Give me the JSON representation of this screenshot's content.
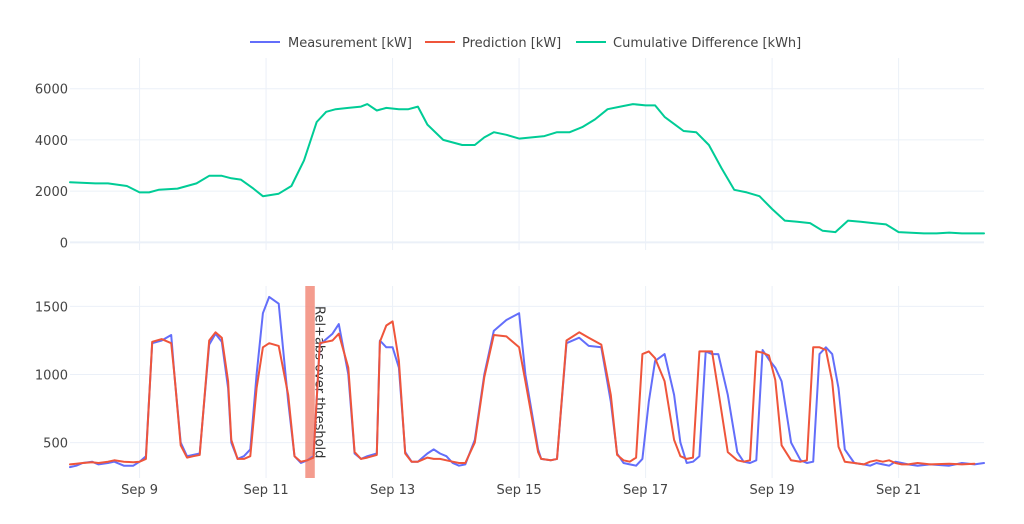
{
  "chart_data": {
    "type": "line",
    "colors": {
      "measurement": "#636efa",
      "prediction": "#ef553b",
      "cumulative": "#00cc96",
      "annotation_band": "#f28b7a"
    },
    "legend": {
      "placement": "top-center",
      "entries": [
        "Measurement [kW]",
        "Prediction [kW]",
        "Cumulative Difference [kWh]"
      ]
    },
    "x_ticks": [
      "Sep 9",
      "Sep 11",
      "Sep 13",
      "Sep 15",
      "Sep 17",
      "Sep 19",
      "Sep 21"
    ],
    "x_tick_days": [
      9,
      11,
      13,
      15,
      17,
      19,
      21
    ],
    "xlim_days": [
      7.9,
      22.35
    ],
    "grid": true,
    "top_panel": {
      "ylim": [
        -300,
        7200
      ],
      "y_ticks": [
        0,
        2000,
        4000,
        6000
      ],
      "series": [
        {
          "name": "Cumulative Difference [kWh]",
          "x_days": [
            7.9,
            8.3,
            8.5,
            8.8,
            9.0,
            9.15,
            9.3,
            9.6,
            9.9,
            10.1,
            10.3,
            10.45,
            10.6,
            10.8,
            10.95,
            11.2,
            11.4,
            11.6,
            11.8,
            11.95,
            12.1,
            12.3,
            12.5,
            12.6,
            12.75,
            12.9,
            13.1,
            13.25,
            13.4,
            13.55,
            13.8,
            14.1,
            14.3,
            14.45,
            14.6,
            14.8,
            15.0,
            15.2,
            15.4,
            15.6,
            15.8,
            16.0,
            16.2,
            16.4,
            16.6,
            16.8,
            17.0,
            17.15,
            17.3,
            17.6,
            17.8,
            18.0,
            18.2,
            18.4,
            18.6,
            18.8,
            19.0,
            19.2,
            19.4,
            19.6,
            19.8,
            20.0,
            20.2,
            20.4,
            20.6,
            20.8,
            21.0,
            21.4,
            21.6,
            21.8,
            22.0,
            22.35
          ],
          "values": [
            2350,
            2300,
            2300,
            2200,
            1950,
            1950,
            2050,
            2100,
            2300,
            2600,
            2600,
            2500,
            2450,
            2100,
            1800,
            1900,
            2200,
            3200,
            4700,
            5100,
            5200,
            5250,
            5300,
            5400,
            5150,
            5250,
            5200,
            5200,
            5300,
            4600,
            4000,
            3800,
            3800,
            4100,
            4300,
            4200,
            4050,
            4100,
            4150,
            4300,
            4300,
            4500,
            4800,
            5200,
            5300,
            5400,
            5350,
            5350,
            4900,
            4350,
            4300,
            3800,
            2900,
            2050,
            1950,
            1800,
            1300,
            850,
            800,
            750,
            450,
            400,
            850,
            800,
            750,
            700,
            400,
            350,
            350,
            380,
            350,
            350
          ]
        }
      ]
    },
    "bottom_panel": {
      "ylim": [
        240,
        1650
      ],
      "y_ticks": [
        500,
        1000,
        1500
      ],
      "annotation": {
        "text": "Rel+abs over threshold",
        "x_start_day": 11.62,
        "x_end_day": 11.77
      },
      "series": [
        {
          "name": "Measurement [kW]",
          "x_days": [
            7.9,
            8.0,
            8.1,
            8.25,
            8.35,
            8.5,
            8.6,
            8.75,
            8.9,
            9.0,
            9.1,
            9.2,
            9.35,
            9.5,
            9.55,
            9.65,
            9.75,
            9.85,
            9.95,
            10.1,
            10.2,
            10.3,
            10.4,
            10.45,
            10.55,
            10.65,
            10.75,
            10.85,
            10.95,
            11.05,
            11.2,
            11.35,
            11.45,
            11.55,
            11.65,
            11.75,
            11.85,
            11.95,
            12.05,
            12.15,
            12.3,
            12.4,
            12.5,
            12.6,
            12.75,
            12.8,
            12.9,
            13.0,
            13.1,
            13.2,
            13.3,
            13.4,
            13.45,
            13.55,
            13.65,
            13.75,
            13.85,
            13.95,
            14.05,
            14.15,
            14.3,
            14.45,
            14.6,
            14.8,
            15.0,
            15.1,
            15.3,
            15.35,
            15.5,
            15.6,
            15.75,
            15.95,
            16.1,
            16.3,
            16.45,
            16.55,
            16.65,
            16.75,
            16.85,
            16.95,
            17.05,
            17.15,
            17.3,
            17.45,
            17.55,
            17.65,
            17.75,
            17.85,
            17.95,
            18.05,
            18.15,
            18.3,
            18.45,
            18.55,
            18.65,
            18.75,
            18.85,
            18.95,
            19.05,
            19.15,
            19.3,
            19.45,
            19.55,
            19.65,
            19.75,
            19.85,
            19.95,
            20.05,
            20.15,
            20.3,
            20.45,
            20.55,
            20.65,
            20.75,
            20.85,
            20.95,
            21.05,
            21.15,
            21.3,
            21.5,
            21.8,
            22.0,
            22.2,
            22.35
          ],
          "values": [
            320,
            330,
            350,
            360,
            340,
            350,
            360,
            330,
            330,
            360,
            400,
            1230,
            1250,
            1290,
            1000,
            500,
            400,
            410,
            420,
            1220,
            1300,
            1240,
            900,
            500,
            380,
            400,
            450,
            1000,
            1450,
            1570,
            1520,
            800,
            400,
            350,
            370,
            400,
            1220,
            1260,
            1300,
            1370,
            1000,
            420,
            380,
            400,
            420,
            1250,
            1200,
            1200,
            1050,
            430,
            360,
            360,
            380,
            420,
            450,
            420,
            400,
            350,
            330,
            340,
            520,
            1000,
            1320,
            1400,
            1450,
            1000,
            450,
            380,
            370,
            380,
            1230,
            1270,
            1210,
            1200,
            800,
            420,
            350,
            340,
            330,
            380,
            800,
            1100,
            1150,
            850,
            500,
            350,
            360,
            400,
            1170,
            1150,
            1150,
            850,
            430,
            360,
            350,
            370,
            1180,
            1110,
            1050,
            950,
            500,
            370,
            350,
            360,
            1150,
            1200,
            1150,
            900,
            450,
            350,
            340,
            330,
            350,
            340,
            330,
            360,
            350,
            340,
            330,
            340,
            330,
            350,
            340,
            350
          ]
        },
        {
          "name": "Prediction [kW]",
          "x_days": [
            7.9,
            8.0,
            8.1,
            8.25,
            8.35,
            8.5,
            8.6,
            8.75,
            8.9,
            9.0,
            9.1,
            9.2,
            9.35,
            9.5,
            9.55,
            9.65,
            9.75,
            9.85,
            9.95,
            10.1,
            10.2,
            10.3,
            10.4,
            10.45,
            10.55,
            10.65,
            10.75,
            10.85,
            10.95,
            11.05,
            11.2,
            11.35,
            11.45,
            11.55,
            11.65,
            11.75,
            11.85,
            11.95,
            12.05,
            12.15,
            12.3,
            12.4,
            12.5,
            12.6,
            12.75,
            12.8,
            12.9,
            13.0,
            13.1,
            13.2,
            13.3,
            13.4,
            13.45,
            13.55,
            13.65,
            13.75,
            13.85,
            13.95,
            14.05,
            14.15,
            14.3,
            14.45,
            14.6,
            14.8,
            15.0,
            15.1,
            15.3,
            15.35,
            15.5,
            15.6,
            15.75,
            15.95,
            16.1,
            16.3,
            16.45,
            16.55,
            16.65,
            16.75,
            16.85,
            16.95,
            17.05,
            17.15,
            17.3,
            17.45,
            17.55,
            17.65,
            17.75,
            17.85,
            17.95,
            18.05,
            18.15,
            18.3,
            18.45,
            18.55,
            18.65,
            18.75,
            18.85,
            18.95,
            19.05,
            19.15,
            19.3,
            19.45,
            19.55,
            19.65,
            19.75,
            19.85,
            19.95,
            20.05,
            20.15,
            20.3,
            20.45,
            20.55,
            20.65,
            20.75,
            20.85,
            20.95,
            21.05,
            21.15,
            21.3,
            21.5,
            21.8,
            22.0,
            22.2,
            22.35
          ],
          "values": [
            340,
            345,
            350,
            355,
            350,
            360,
            370,
            360,
            355,
            360,
            380,
            1240,
            1260,
            1230,
            1000,
            480,
            390,
            400,
            410,
            1250,
            1310,
            1270,
            950,
            520,
            380,
            380,
            400,
            900,
            1200,
            1230,
            1210,
            850,
            400,
            360,
            370,
            390,
            1230,
            1240,
            1250,
            1300,
            1050,
            430,
            380,
            390,
            410,
            1240,
            1360,
            1390,
            1100,
            420,
            360,
            360,
            370,
            390,
            380,
            380,
            370,
            360,
            350,
            350,
            500,
            980,
            1290,
            1280,
            1200,
            950,
            430,
            380,
            370,
            380,
            1250,
            1310,
            1270,
            1220,
            850,
            410,
            370,
            360,
            390,
            1150,
            1170,
            1120,
            950,
            520,
            400,
            380,
            390,
            1170,
            1170,
            1170,
            880,
            430,
            370,
            360,
            370,
            1170,
            1160,
            1140,
            960,
            480,
            370,
            360,
            370,
            1200,
            1200,
            1180,
            950,
            470,
            360,
            350,
            340,
            360,
            370,
            360,
            370,
            350,
            340,
            340,
            350,
            340,
            345,
            340,
            345
          ]
        }
      ]
    }
  }
}
